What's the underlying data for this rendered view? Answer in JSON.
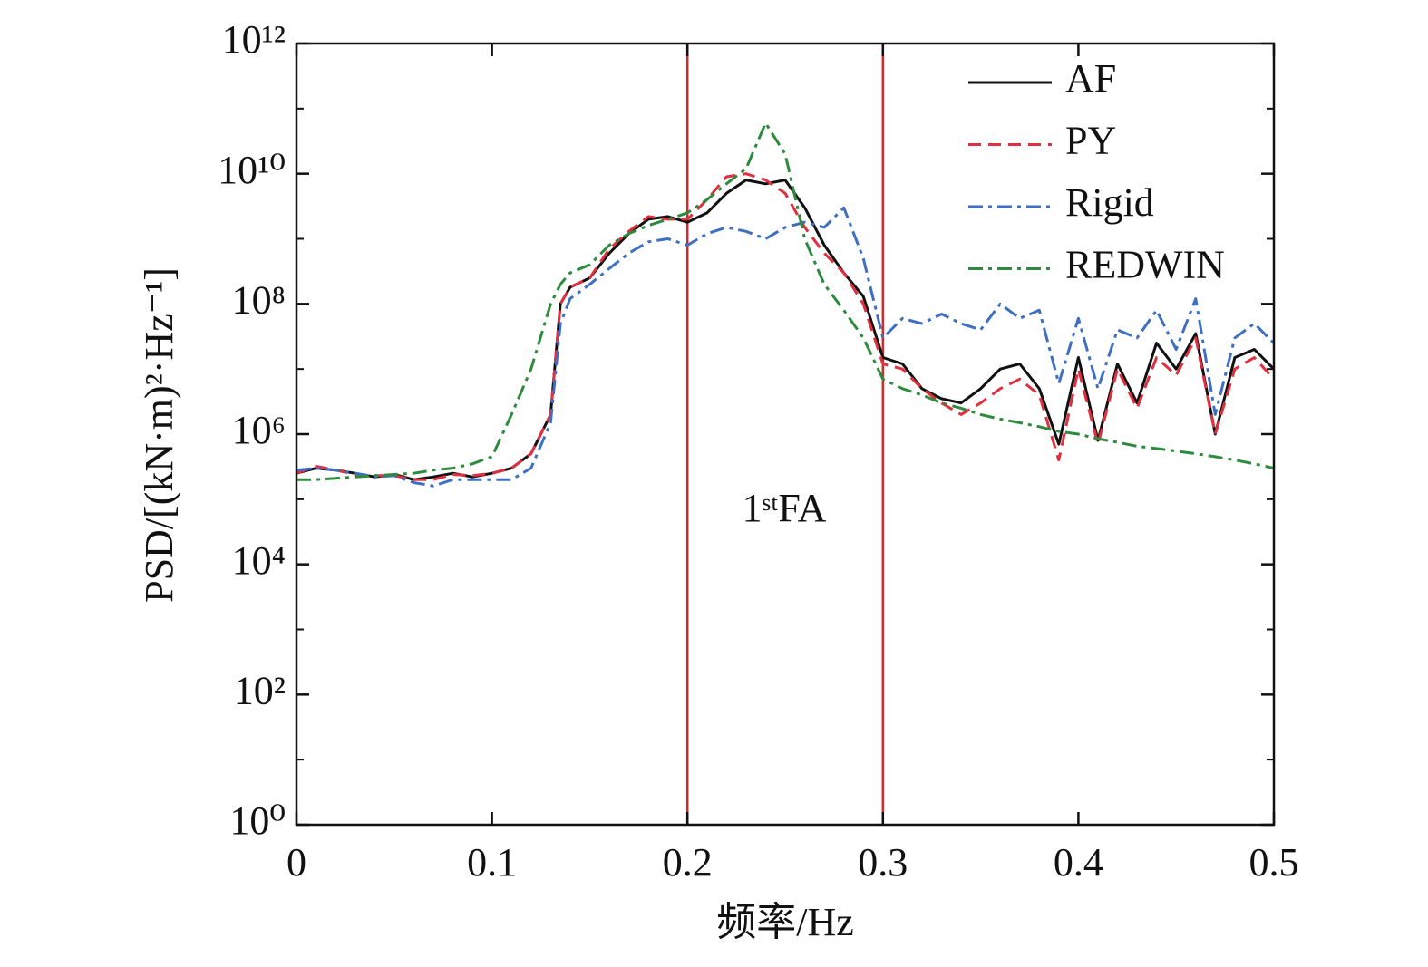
{
  "chart_data": {
    "type": "line",
    "xlabel": "频率/Hz",
    "ylabel": "PSD/[(kN·m)²·Hz⁻¹]",
    "annotation": "1ˢᵗFA",
    "x": [
      0,
      0.01,
      0.02,
      0.03,
      0.04,
      0.05,
      0.06,
      0.07,
      0.08,
      0.09,
      0.1,
      0.11,
      0.12,
      0.13,
      0.135,
      0.14,
      0.15,
      0.16,
      0.17,
      0.18,
      0.19,
      0.2,
      0.21,
      0.22,
      0.23,
      0.24,
      0.25,
      0.26,
      0.27,
      0.28,
      0.29,
      0.3,
      0.31,
      0.32,
      0.33,
      0.34,
      0.35,
      0.36,
      0.37,
      0.38,
      0.39,
      0.4,
      0.41,
      0.42,
      0.43,
      0.44,
      0.45,
      0.46,
      0.47,
      0.48,
      0.49,
      0.5
    ],
    "series": [
      {
        "name": "AF",
        "color": "#111111",
        "linestyle": "solid",
        "values": [
          250000.0,
          300000.0,
          280000.0,
          250000.0,
          220000.0,
          240000.0,
          200000.0,
          220000.0,
          250000.0,
          220000.0,
          250000.0,
          300000.0,
          500000.0,
          2000000.0,
          100000000.0,
          180000000.0,
          250000000.0,
          600000000.0,
          1200000000.0,
          2000000000.0,
          2200000000.0,
          1800000000.0,
          2500000000.0,
          5000000000.0,
          8000000000.0,
          7000000000.0,
          8000000000.0,
          3000000000.0,
          800000000.0,
          300000000.0,
          130000000.0,
          15000000.0,
          12000000.0,
          5000000.0,
          3500000.0,
          3000000.0,
          5000000.0,
          10000000.0,
          12000000.0,
          5000000.0,
          700000.0,
          15000000.0,
          800000.0,
          12000000.0,
          3000000.0,
          25000000.0,
          10000000.0,
          35000000.0,
          1000000.0,
          15000000.0,
          20000000.0,
          10000000.0
        ]
      },
      {
        "name": "PY",
        "color": "#e03040",
        "linestyle": "dashed",
        "values": [
          250000.0,
          320000.0,
          280000.0,
          240000.0,
          230000.0,
          230000.0,
          200000.0,
          200000.0,
          240000.0,
          230000.0,
          250000.0,
          300000.0,
          500000.0,
          2000000.0,
          100000000.0,
          180000000.0,
          250000000.0,
          700000000.0,
          1300000000.0,
          2200000000.0,
          2000000000.0,
          2000000000.0,
          4000000000.0,
          9000000000.0,
          10000000000.0,
          8000000000.0,
          5000000000.0,
          1500000000.0,
          600000000.0,
          300000000.0,
          100000000.0,
          12000000.0,
          10000000.0,
          5000000.0,
          3000000.0,
          2000000.0,
          3000000.0,
          5000000.0,
          7000000.0,
          4000000.0,
          400000.0,
          10000000.0,
          700000.0,
          10000000.0,
          2500000.0,
          15000000.0,
          8000000.0,
          30000000.0,
          1000000.0,
          10000000.0,
          15000000.0,
          7000000.0
        ]
      },
      {
        "name": "Rigid",
        "color": "#3f6fc0",
        "linestyle": "dashdot",
        "values": [
          280000.0,
          300000.0,
          280000.0,
          250000.0,
          220000.0,
          230000.0,
          180000.0,
          160000.0,
          200000.0,
          200000.0,
          200000.0,
          200000.0,
          300000.0,
          1500000.0,
          50000000.0,
          120000000.0,
          200000000.0,
          350000000.0,
          600000000.0,
          900000000.0,
          1000000000.0,
          800000000.0,
          1200000000.0,
          1500000000.0,
          1300000000.0,
          1000000000.0,
          1500000000.0,
          1800000000.0,
          1500000000.0,
          3000000000.0,
          500000000.0,
          30000000.0,
          60000000.0,
          50000000.0,
          70000000.0,
          50000000.0,
          40000000.0,
          100000000.0,
          60000000.0,
          80000000.0,
          6000000.0,
          60000000.0,
          5000000.0,
          40000000.0,
          30000000.0,
          80000000.0,
          20000000.0,
          120000000.0,
          2000000.0,
          30000000.0,
          50000000.0,
          25000000.0
        ]
      },
      {
        "name": "REDWIN",
        "color": "#2e8b3e",
        "linestyle": "dashdot",
        "values": [
          200000.0,
          200000.0,
          210000.0,
          220000.0,
          230000.0,
          240000.0,
          250000.0,
          280000.0,
          300000.0,
          350000.0,
          450000.0,
          2000000.0,
          10000000.0,
          100000000.0,
          200000000.0,
          300000000.0,
          400000000.0,
          800000000.0,
          1200000000.0,
          1600000000.0,
          2000000000.0,
          2500000000.0,
          4000000000.0,
          7000000000.0,
          12000000000.0,
          60000000000.0,
          20000000000.0,
          1000000000.0,
          200000000.0,
          80000000.0,
          30000000.0,
          7000000.0,
          5000000.0,
          4000000.0,
          3000000.0,
          2500000.0,
          2000000.0,
          1700000.0,
          1500000.0,
          1300000.0,
          1100000.0,
          1000000.0,
          850000.0,
          750000.0,
          650000.0,
          600000.0,
          550000.0,
          500000.0,
          450000.0,
          400000.0,
          350000.0,
          300000.0
        ]
      }
    ],
    "xlim": [
      0,
      0.5
    ],
    "xticks": [
      0,
      0.1,
      0.2,
      0.3,
      0.4,
      0.5
    ],
    "ylim": [
      1,
      1000000000000.0
    ],
    "yscale": "log",
    "yticks": [
      {
        "value": 1,
        "label": "10⁰"
      },
      {
        "value": 100,
        "label": "10²"
      },
      {
        "value": 10000,
        "label": "10⁴"
      },
      {
        "value": 1000000.0,
        "label": "10⁶"
      },
      {
        "value": 100000000.0,
        "label": "10⁸"
      },
      {
        "value": 10000000000.0,
        "label": "10¹⁰"
      },
      {
        "value": 1000000000000.0,
        "label": "10¹²"
      }
    ],
    "yminor_ticks": [
      10,
      1000,
      100000.0,
      10000000.0,
      1000000000.0,
      100000000000.0
    ],
    "vlines": [
      0.2,
      0.3
    ],
    "vline_color": "#d42a2a",
    "legend": "upper right"
  }
}
